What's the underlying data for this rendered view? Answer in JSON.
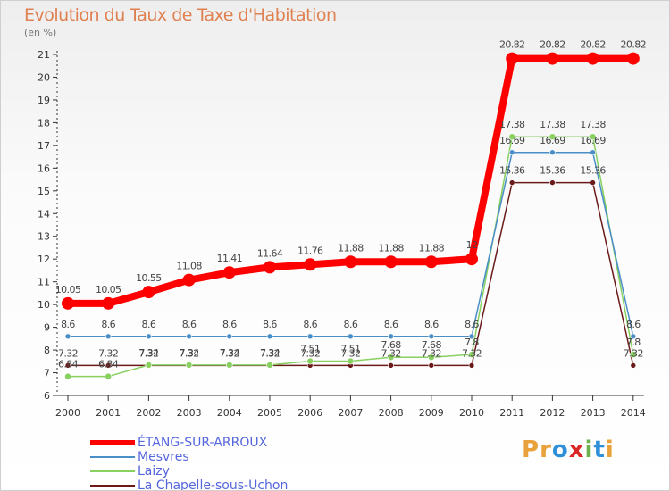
{
  "header": {
    "title": "Evolution du Taux de Taxe d'Habitation",
    "subtitle": "(en %)"
  },
  "logo": {
    "text": "Proxiti",
    "letters": [
      "P",
      "r",
      "o",
      "x",
      "i",
      "t",
      "i"
    ],
    "colors": [
      "#e9a23b",
      "#e9a23b",
      "#2f8fd8",
      "#d92525",
      "#6ab04c",
      "#2f8fd8",
      "#e9a23b"
    ]
  },
  "chart_data": {
    "type": "line",
    "title": "Evolution du Taux de Taxe d'Habitation",
    "ylabel": "(en %)",
    "x": [
      "2000",
      "2001",
      "2002",
      "2003",
      "2004",
      "2005",
      "2006",
      "2007",
      "2008",
      "2009",
      "2010",
      "2011",
      "2012",
      "2013",
      "2014"
    ],
    "ylim": [
      6,
      21
    ],
    "yticks": [
      "6",
      "7",
      "8",
      "9",
      "10",
      "11",
      "12",
      "13",
      "14",
      "15",
      "16",
      "17",
      "18",
      "19",
      "20",
      "21"
    ],
    "grid": false,
    "legend_position": "bottom-left",
    "series": [
      {
        "name": "ÉTANG-SUR-ARROUX",
        "color": "#ff0000",
        "labels": [
          "10.05",
          "10.05",
          "10.55",
          "11.08",
          "11.41",
          "11.64",
          "11.76",
          "11.88",
          "11.88",
          "11.88",
          "12",
          "20.82",
          "20.82",
          "20.82",
          "20.82"
        ],
        "values": [
          10.05,
          10.05,
          10.55,
          11.08,
          11.41,
          11.64,
          11.76,
          11.88,
          11.88,
          11.88,
          12,
          20.82,
          20.82,
          20.82,
          20.82
        ]
      },
      {
        "name": "Mesvres",
        "color": "#4a8ec8",
        "labels": [
          "8.6",
          "8.6",
          "8.6",
          "8.6",
          "8.6",
          "8.6",
          "8.6",
          "8.6",
          "8.6",
          "8.6",
          "8.6",
          "16.69",
          "16.69",
          "16.69",
          "8.6"
        ],
        "values": [
          8.6,
          8.6,
          8.6,
          8.6,
          8.6,
          8.6,
          8.6,
          8.6,
          8.6,
          8.6,
          8.6,
          16.69,
          16.69,
          16.69,
          8.6
        ]
      },
      {
        "name": "Laizy",
        "color": "#88d060",
        "labels": [
          "6.84",
          "6.84",
          "7.34",
          "7.34",
          "7.34",
          "7.34",
          "7.51",
          "7.51",
          "7.68",
          "7.68",
          "7.8",
          "17.38",
          "17.38",
          "17.38",
          "7.8"
        ],
        "values": [
          6.84,
          6.84,
          7.34,
          7.34,
          7.34,
          7.34,
          7.51,
          7.51,
          7.68,
          7.68,
          7.8,
          17.38,
          17.38,
          17.38,
          7.8
        ]
      },
      {
        "name": "La Chapelle-sous-Uchon",
        "color": "#6b1a1a",
        "labels": [
          "7.32",
          "7.32",
          "7.32",
          "7.32",
          "7.32",
          "7.32",
          "7.32",
          "7.32",
          "7.32",
          "7.32",
          "7.32",
          "15.36",
          "15.36",
          "15.36",
          "7.32"
        ],
        "values": [
          7.32,
          7.32,
          7.32,
          7.32,
          7.32,
          7.32,
          7.32,
          7.32,
          7.32,
          7.32,
          7.32,
          15.36,
          15.36,
          15.36,
          7.32
        ]
      }
    ]
  }
}
